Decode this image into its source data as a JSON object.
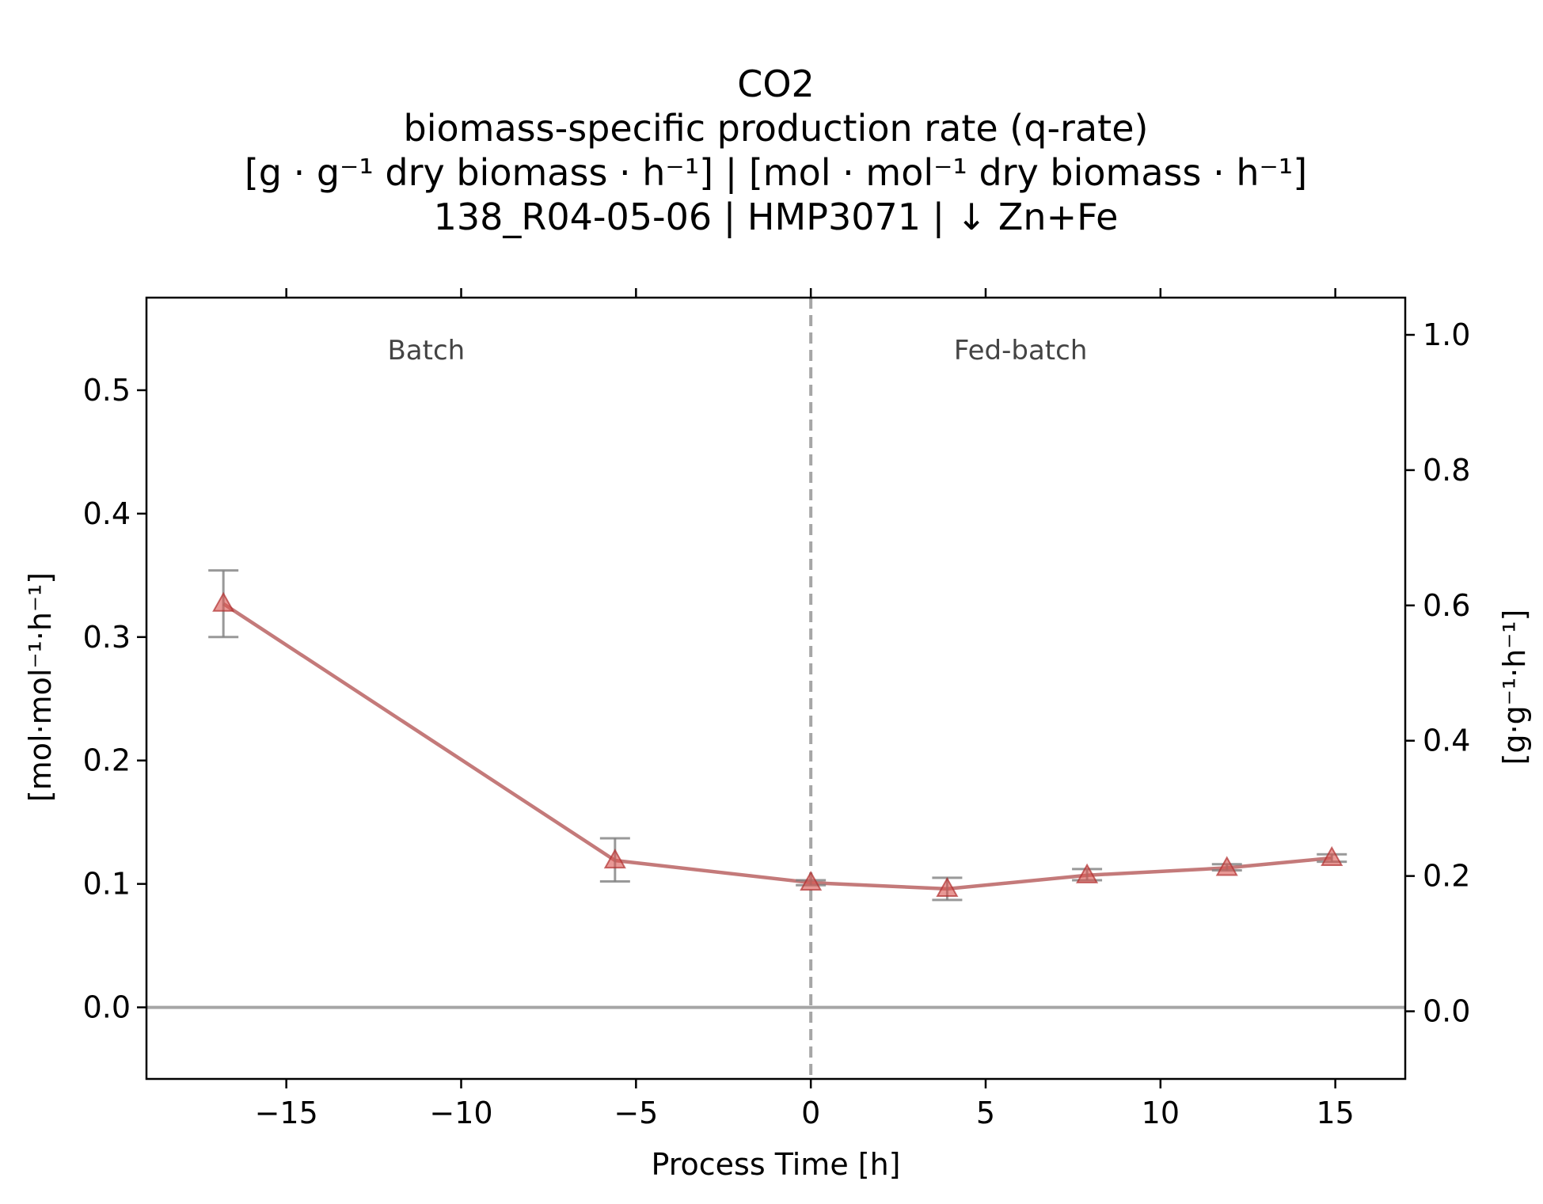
{
  "chart_data": {
    "type": "line",
    "title_lines": [
      "CO2",
      "biomass-specific production rate (q-rate)",
      "[g · g⁻¹ dry biomass · h⁻¹]    |    [mol · mol⁻¹ dry biomass · h⁻¹]",
      "138_R04-05-06  |  HMP3071  |  ↓ Zn+Fe"
    ],
    "xlabel": "Process Time [h]",
    "ylabel_left": "[mol·mol⁻¹·h⁻¹]",
    "ylabel_right": "[g·g⁻¹·h⁻¹]",
    "xlim": [
      -19,
      17
    ],
    "ylim_left": [
      -0.058,
      0.575
    ],
    "ylim_right": [
      -0.1,
      1.055
    ],
    "x_ticks": [
      -15,
      -10,
      -5,
      0,
      5,
      10,
      15
    ],
    "x_tick_labels": [
      "−15",
      "−10",
      "−5",
      "0",
      "5",
      "10",
      "15"
    ],
    "y_left_ticks": [
      0.0,
      0.1,
      0.2,
      0.3,
      0.4,
      0.5
    ],
    "y_left_tick_labels": [
      "0.0",
      "0.1",
      "0.2",
      "0.3",
      "0.4",
      "0.5"
    ],
    "y_right_ticks": [
      0.0,
      0.2,
      0.4,
      0.6,
      0.8,
      1.0
    ],
    "y_right_tick_labels": [
      "0.0",
      "0.2",
      "0.4",
      "0.6",
      "0.8",
      "1.0"
    ],
    "phase_labels": [
      {
        "text": "Batch",
        "x": -11
      },
      {
        "text": "Fed-batch",
        "x": 6
      }
    ],
    "phase_divider_x": 0,
    "zero_line_y": 0,
    "grid": false,
    "series": [
      {
        "marker": "triangle",
        "color": "#c47a7a",
        "marker_color": "#d9534f",
        "error_color": "#808080",
        "points": [
          {
            "x": -16.8,
            "y": 0.327,
            "err_low": 0.3,
            "err_high": 0.354
          },
          {
            "x": -5.6,
            "y": 0.119,
            "err_low": 0.102,
            "err_high": 0.137
          },
          {
            "x": 0.0,
            "y": 0.101,
            "err_low": 0.099,
            "err_high": 0.103
          },
          {
            "x": 3.9,
            "y": 0.096,
            "err_low": 0.087,
            "err_high": 0.105
          },
          {
            "x": 7.9,
            "y": 0.107,
            "err_low": 0.103,
            "err_high": 0.112
          },
          {
            "x": 11.9,
            "y": 0.113,
            "err_low": 0.111,
            "err_high": 0.116
          },
          {
            "x": 14.9,
            "y": 0.121,
            "err_low": 0.118,
            "err_high": 0.124
          }
        ]
      }
    ]
  }
}
